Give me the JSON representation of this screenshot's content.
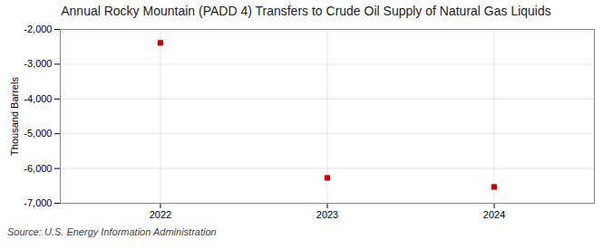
{
  "chart_data": {
    "type": "scatter",
    "title": "Annual Rocky Mountain (PADD 4) Transfers to Crude Oil Supply of Natural Gas Liquids",
    "ylabel": "Thousand Barrels",
    "source": "Source: U.S. Energy Information Administration",
    "x": [
      2022,
      2023,
      2024
    ],
    "values": [
      -2386,
      -6270,
      -6530
    ],
    "color": "#cc0000",
    "marker": "square",
    "xlim": [
      2021.4,
      2024.6
    ],
    "xticks": [
      2022,
      2023,
      2024
    ],
    "ylim": [
      -7000,
      -2000
    ],
    "yticks": [
      {
        "value": -7000,
        "label": "-7,000"
      },
      {
        "value": -6000,
        "label": "-6,000"
      },
      {
        "value": -5000,
        "label": "-5,000"
      },
      {
        "value": -4000,
        "label": "-4,000"
      },
      {
        "value": -3000,
        "label": "-3,000"
      },
      {
        "value": -2000,
        "label": "-2,000"
      }
    ],
    "grid": true
  }
}
